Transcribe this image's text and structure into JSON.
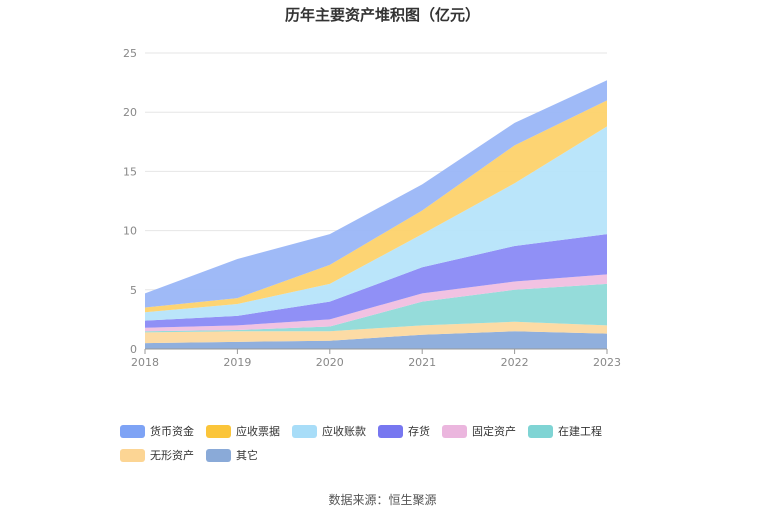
{
  "chart_title": "历年主要资产堆积图（亿元）",
  "source": "数据来源：恒生聚源",
  "chart_data": {
    "type": "area",
    "stacked": true,
    "title": "历年主要资产堆积图（亿元）",
    "x": [
      "2018",
      "2019",
      "2020",
      "2021",
      "2022",
      "2023"
    ],
    "ylim": [
      0,
      25
    ],
    "yticks": [
      "0",
      "5",
      "10",
      "15",
      "20",
      "25"
    ],
    "grid": true,
    "legend_position": "bottom",
    "series": [
      {
        "name": "其它",
        "color": "#8aabdb",
        "values": [
          0.5,
          0.6,
          0.7,
          1.2,
          1.5,
          1.3
        ]
      },
      {
        "name": "无形资产",
        "color": "#fcd9a0",
        "values": [
          0.9,
          0.9,
          0.8,
          0.8,
          0.8,
          0.7
        ]
      },
      {
        "name": "在建工程",
        "color": "#8fdad8",
        "values": [
          0.1,
          0.1,
          0.4,
          2.0,
          2.7,
          3.5
        ]
      },
      {
        "name": "固定资产",
        "color": "#f0bfe0",
        "values": [
          0.3,
          0.4,
          0.6,
          0.7,
          0.7,
          0.8
        ]
      },
      {
        "name": "存货",
        "color": "#8a8af5",
        "values": [
          0.6,
          0.8,
          1.5,
          2.2,
          3.0,
          3.4
        ]
      },
      {
        "name": "应收账款",
        "color": "#b6e4fa",
        "values": [
          0.7,
          1.0,
          1.5,
          2.8,
          5.3,
          9.1
        ]
      },
      {
        "name": "应收票据",
        "color": "#fdd26b",
        "values": [
          0.4,
          0.5,
          1.6,
          2.0,
          3.2,
          2.2
        ]
      },
      {
        "name": "货币资金",
        "color": "#9ab6f7",
        "values": [
          1.2,
          3.3,
          2.6,
          2.2,
          1.9,
          1.7
        ]
      }
    ]
  },
  "legend": [
    {
      "label": "货币资金",
      "color": "#7ea3f5"
    },
    {
      "label": "应收票据",
      "color": "#fbc53a"
    },
    {
      "label": "应收账款",
      "color": "#a8ddf8"
    },
    {
      "label": "存货",
      "color": "#7777f0"
    },
    {
      "label": "固定资产",
      "color": "#ebb6de"
    },
    {
      "label": "在建工程",
      "color": "#7fd4d4"
    },
    {
      "label": "无形资产",
      "color": "#fcd594"
    },
    {
      "label": "其它",
      "color": "#8aaad8"
    }
  ]
}
